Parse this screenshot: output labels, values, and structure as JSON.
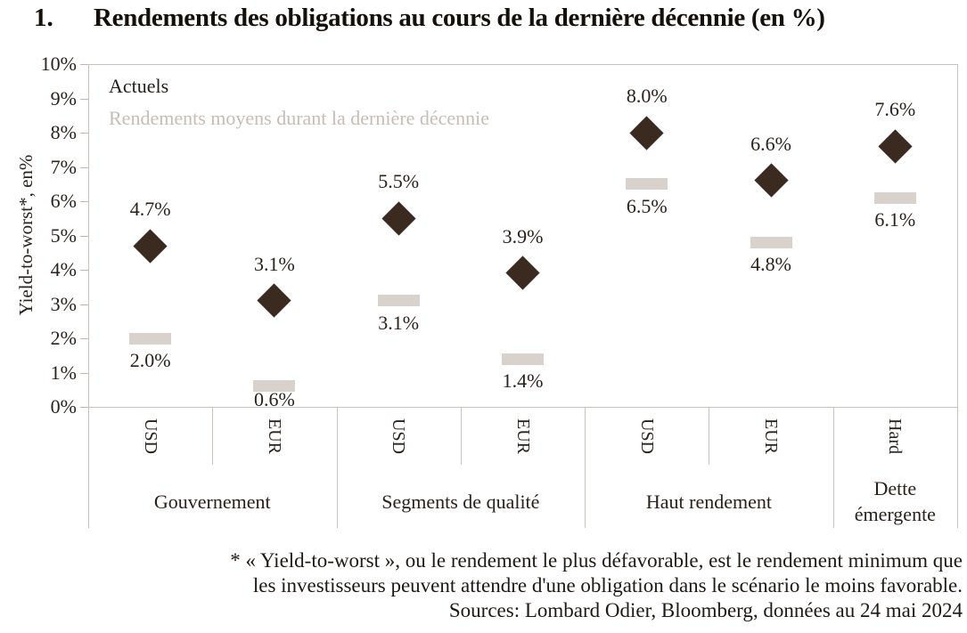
{
  "title": {
    "number": "1.",
    "text": "Rendements des obligations au cours de la dernière décennie (en %)"
  },
  "legend": {
    "actuals": "Actuels",
    "average": "Rendements moyens durant la dernière décennie"
  },
  "colors": {
    "diamond": "#3a2a20",
    "bar": "#d9d1cb",
    "muted_text": "#c7bdb6",
    "dark_text": "#2a211c",
    "axis_line": "#c9c3be"
  },
  "y_axis": {
    "label": "Yield-to-worst*, en%",
    "tick_labels": [
      "0%",
      "1%",
      "2%",
      "3%",
      "4%",
      "5%",
      "6%",
      "7%",
      "8%",
      "9%",
      "10%"
    ]
  },
  "footnote": {
    "line1": "* « Yield-to-worst », ou le rendement le plus défavorable, est le rendement minimum que",
    "line2": "les investisseurs peuvent attendre d'une obligation dans le scénario le moins favorable.",
    "sources": "Sources: Lombard Odier, Bloomberg, données au 24 mai 2024"
  },
  "chart_data": {
    "type": "scatter",
    "title": "Rendements des obligations au cours de la dernière décennie (en %)",
    "ylabel": "Yield-to-worst*, en%",
    "ylim": [
      0,
      10
    ],
    "y_tick_step": 1,
    "grid": false,
    "legend_position": "inside top-left",
    "categories": [
      "USD",
      "EUR",
      "USD",
      "EUR",
      "USD",
      "EUR",
      "Hard"
    ],
    "groups": [
      {
        "label": "Gouvernement",
        "span": 2
      },
      {
        "label": "Segments de qualité",
        "span": 2
      },
      {
        "label": "Haut rendement",
        "span": 2
      },
      {
        "label": "Dette émergente",
        "span": 1
      }
    ],
    "series": [
      {
        "name": "Actuels",
        "marker": "diamond",
        "color": "#3a2a20",
        "values": [
          4.7,
          3.1,
          5.5,
          3.9,
          8.0,
          6.6,
          7.6
        ]
      },
      {
        "name": "Rendements moyens durant la dernière décennie",
        "marker": "bar",
        "color": "#d9d1cb",
        "values": [
          2.0,
          0.6,
          3.1,
          1.4,
          6.5,
          4.8,
          6.1
        ]
      }
    ]
  }
}
